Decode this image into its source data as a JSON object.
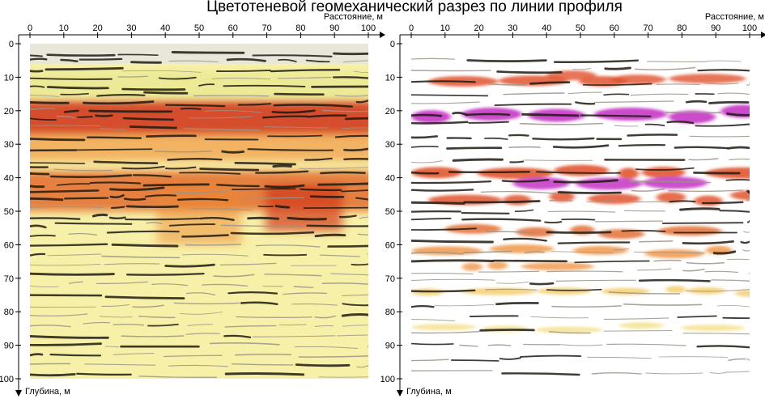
{
  "title": "Цветотеневой геомеханический разрез по линии профиля",
  "colors": {
    "background": "#ffffff",
    "axis": "#000000",
    "light_yellow": "#f7f0a8",
    "orange": "#ee7a2a",
    "red": "#d23a1e",
    "magenta": "#c840c8",
    "dark_band": "#1e1a12"
  },
  "chart_data": [
    {
      "type": "heatmap",
      "panel": "left",
      "xlabel": "Расстояние, м",
      "ylabel": "Глубина, м",
      "xlim": [
        0,
        100
      ],
      "ylim": [
        0,
        100
      ],
      "y_inverted": true,
      "xticks": [
        0,
        10,
        20,
        30,
        40,
        50,
        60,
        70,
        80,
        90,
        100
      ],
      "yticks": [
        0,
        10,
        20,
        30,
        40,
        50,
        60,
        70,
        80,
        90,
        100
      ],
      "background_color": "#f7f0a8",
      "intensity_zones": [
        {
          "x": [
            0,
            100
          ],
          "depth": [
            17,
            27
          ],
          "color": "#d23a1e",
          "level": 0.9
        },
        {
          "x": [
            0,
            100
          ],
          "depth": [
            27,
            35
          ],
          "color": "#ee8a32",
          "level": 0.6
        },
        {
          "x": [
            0,
            100
          ],
          "depth": [
            38,
            50
          ],
          "color": "#e06428",
          "level": 0.8
        },
        {
          "x": [
            40,
            60
          ],
          "depth": [
            42,
            60
          ],
          "color": "#ee8a32",
          "level": 0.5
        },
        {
          "x": [
            72,
            90
          ],
          "depth": [
            42,
            56
          ],
          "color": "#d23a1e",
          "level": 0.7
        },
        {
          "x": [
            0,
            100
          ],
          "depth": [
            8,
            16
          ],
          "color": "#dde07a",
          "level": 0.4
        }
      ],
      "layer_depths": [
        3,
        5,
        8,
        10,
        13,
        15,
        18,
        20,
        22,
        25,
        28,
        32,
        35,
        37,
        39,
        42,
        44,
        46,
        49,
        52,
        54,
        57,
        60,
        63,
        66,
        69,
        72,
        75,
        78,
        81,
        84,
        87,
        90,
        93,
        96,
        99
      ]
    },
    {
      "type": "heatmap",
      "panel": "right",
      "xlabel": "Расстояние, м",
      "ylabel": "Глубина, м",
      "xlim": [
        0,
        100
      ],
      "ylim": [
        0,
        100
      ],
      "y_inverted": true,
      "xticks": [
        0,
        10,
        20,
        30,
        40,
        50,
        60,
        70,
        80,
        90,
        100
      ],
      "yticks": [
        0,
        10,
        20,
        30,
        40,
        50,
        60,
        70,
        80,
        90,
        100
      ],
      "background_color": "#ffffff",
      "lenses": [
        {
          "x": [
            0,
            100
          ],
          "depth": 21,
          "color": "#c840c8",
          "level": 1.0
        },
        {
          "x": [
            5,
            60
          ],
          "depth": 12,
          "color": "#e0502a",
          "level": 0.7
        },
        {
          "x": [
            40,
            95
          ],
          "depth": 10,
          "color": "#e0502a",
          "level": 0.6
        },
        {
          "x": [
            0,
            100
          ],
          "depth": 38,
          "color": "#e0502a",
          "level": 0.8
        },
        {
          "x": [
            30,
            90
          ],
          "depth": 41,
          "color": "#c840c8",
          "level": 0.9
        },
        {
          "x": [
            5,
            100
          ],
          "depth": 46,
          "color": "#e0502a",
          "level": 0.7
        },
        {
          "x": [
            10,
            95
          ],
          "depth": 56,
          "color": "#e06428",
          "level": 0.6
        },
        {
          "x": [
            0,
            90
          ],
          "depth": 62,
          "color": "#ee8a32",
          "level": 0.5
        },
        {
          "x": [
            15,
            55
          ],
          "depth": 66,
          "color": "#ee8a32",
          "level": 0.4
        },
        {
          "x": [
            0,
            100
          ],
          "depth": 74,
          "color": "#f2c24a",
          "level": 0.3
        },
        {
          "x": [
            0,
            100
          ],
          "depth": 85,
          "color": "#f2d86a",
          "level": 0.2
        }
      ],
      "layer_depths": [
        5,
        8,
        12,
        15,
        18,
        21,
        24,
        28,
        31,
        35,
        38,
        41,
        44,
        47,
        50,
        53,
        56,
        59,
        62,
        65,
        68,
        71,
        74,
        78,
        82,
        86,
        90,
        94,
        98
      ]
    }
  ]
}
